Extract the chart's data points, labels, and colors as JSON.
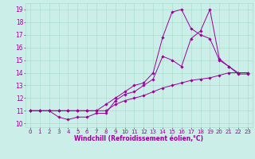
{
  "xlabel": "Windchill (Refroidissement éolien,°C)",
  "bg_color": "#cceee8",
  "line_color": "#990099",
  "grid_color": "#aaddcc",
  "xlim": [
    -0.5,
    23.5
  ],
  "ylim": [
    9.7,
    19.5
  ],
  "xticks": [
    0,
    1,
    2,
    3,
    4,
    5,
    6,
    7,
    8,
    9,
    10,
    11,
    12,
    13,
    14,
    15,
    16,
    17,
    18,
    19,
    20,
    21,
    22,
    23
  ],
  "yticks": [
    10,
    11,
    12,
    13,
    14,
    15,
    16,
    17,
    18,
    19
  ],
  "curve1_x": [
    0,
    1,
    2,
    3,
    4,
    5,
    6,
    7,
    8,
    9,
    10,
    11,
    12,
    13,
    14,
    15,
    16,
    17,
    18,
    19,
    20,
    21,
    22,
    23
  ],
  "curve1_y": [
    11.0,
    11.0,
    11.0,
    10.5,
    10.3,
    10.5,
    10.5,
    10.8,
    10.8,
    11.8,
    12.3,
    12.5,
    13.0,
    13.5,
    15.3,
    15.0,
    14.5,
    16.7,
    17.3,
    19.0,
    15.1,
    14.5,
    13.9,
    13.9
  ],
  "curve2_x": [
    0,
    1,
    2,
    3,
    4,
    5,
    6,
    7,
    8,
    9,
    10,
    11,
    12,
    13,
    14,
    15,
    16,
    17,
    18,
    19,
    20,
    21,
    22,
    23
  ],
  "curve2_y": [
    11.0,
    11.0,
    11.0,
    11.0,
    11.0,
    11.0,
    11.0,
    11.0,
    11.5,
    12.0,
    12.5,
    13.0,
    13.2,
    14.0,
    16.8,
    18.8,
    19.0,
    17.5,
    17.0,
    16.7,
    15.0,
    14.5,
    14.0,
    14.0
  ],
  "curve3_x": [
    0,
    1,
    2,
    3,
    4,
    5,
    6,
    7,
    8,
    9,
    10,
    11,
    12,
    13,
    14,
    15,
    16,
    17,
    18,
    19,
    20,
    21,
    22,
    23
  ],
  "curve3_y": [
    11.0,
    11.0,
    11.0,
    11.0,
    11.0,
    11.0,
    11.0,
    11.0,
    11.0,
    11.5,
    11.8,
    12.0,
    12.2,
    12.5,
    12.8,
    13.0,
    13.2,
    13.4,
    13.5,
    13.6,
    13.8,
    14.0,
    14.0,
    14.0
  ],
  "xtick_fontsize": 5.0,
  "ytick_fontsize": 5.5,
  "xlabel_fontsize": 5.5
}
